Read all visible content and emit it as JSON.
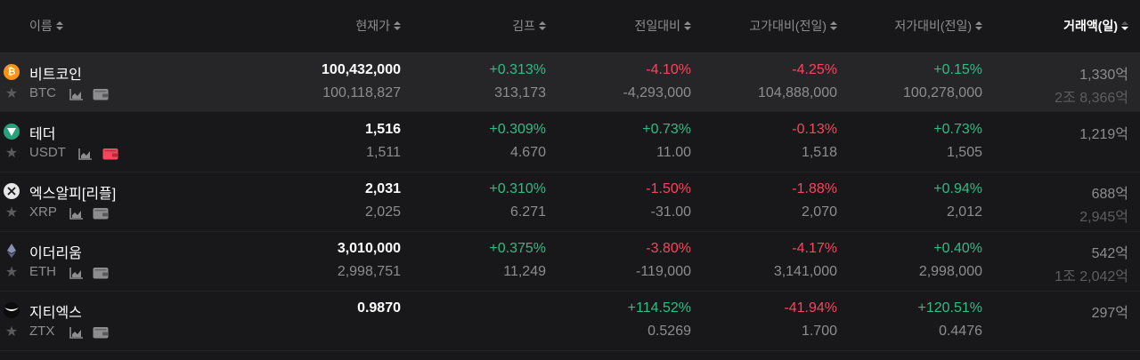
{
  "columns": {
    "name": "이름",
    "price": "현재가",
    "kimp": "김프",
    "change": "전일대비",
    "high": "고가대비(전일)",
    "low": "저가대비(전일)",
    "volume": "거래액(일)"
  },
  "colors": {
    "up": "#2ebd85",
    "down": "#f6465d",
    "btc": "#f7931a",
    "usdt": "#26a17b",
    "xrp": "#e6e6e6",
    "eth": "#8a92b2",
    "wallet_alert": "#f6465d"
  },
  "rows": [
    {
      "name": "비트코인",
      "symbol": "BTC",
      "icon": "bitcoin-icon",
      "wallet": "normal",
      "price": "100,432,000",
      "price_sub": "100,118,827",
      "kimp": "+0.313%",
      "kimp_sub": "313,173",
      "change": "-4.10%",
      "change_sub": "-4,293,000",
      "high": "-4.25%",
      "high_sub": "104,888,000",
      "low": "+0.15%",
      "low_sub": "100,278,000",
      "volume": "1,330억",
      "volume_sub": "2조 8,366억"
    },
    {
      "name": "테더",
      "symbol": "USDT",
      "icon": "tether-icon",
      "wallet": "alert",
      "price": "1,516",
      "price_sub": "1,511",
      "kimp": "+0.309%",
      "kimp_sub": "4.670",
      "change": "+0.73%",
      "change_sub": "11.00",
      "high": "-0.13%",
      "high_sub": "1,518",
      "low": "+0.73%",
      "low_sub": "1,505",
      "volume": "1,219억",
      "volume_sub": ""
    },
    {
      "name": "엑스알피[리플]",
      "symbol": "XRP",
      "icon": "xrp-icon",
      "wallet": "normal",
      "price": "2,031",
      "price_sub": "2,025",
      "kimp": "+0.310%",
      "kimp_sub": "6.271",
      "change": "-1.50%",
      "change_sub": "-31.00",
      "high": "-1.88%",
      "high_sub": "2,070",
      "low": "+0.94%",
      "low_sub": "2,012",
      "volume": "688억",
      "volume_sub": "2,945억"
    },
    {
      "name": "이더리움",
      "symbol": "ETH",
      "icon": "ethereum-icon",
      "wallet": "normal",
      "price": "3,010,000",
      "price_sub": "2,998,751",
      "kimp": "+0.375%",
      "kimp_sub": "11,249",
      "change": "-3.80%",
      "change_sub": "-119,000",
      "high": "-4.17%",
      "high_sub": "3,141,000",
      "low": "+0.40%",
      "low_sub": "2,998,000",
      "volume": "542억",
      "volume_sub": "1조 2,042억"
    },
    {
      "name": "지티엑스",
      "symbol": "ZTX",
      "icon": "ztx-icon",
      "wallet": "normal",
      "price": "0.9870",
      "price_sub": "",
      "kimp": "",
      "kimp_sub": "",
      "change": "+114.52%",
      "change_sub": "0.5269",
      "high": "-41.94%",
      "high_sub": "1.700",
      "low": "+120.51%",
      "low_sub": "0.4476",
      "volume": "297억",
      "volume_sub": ""
    }
  ]
}
